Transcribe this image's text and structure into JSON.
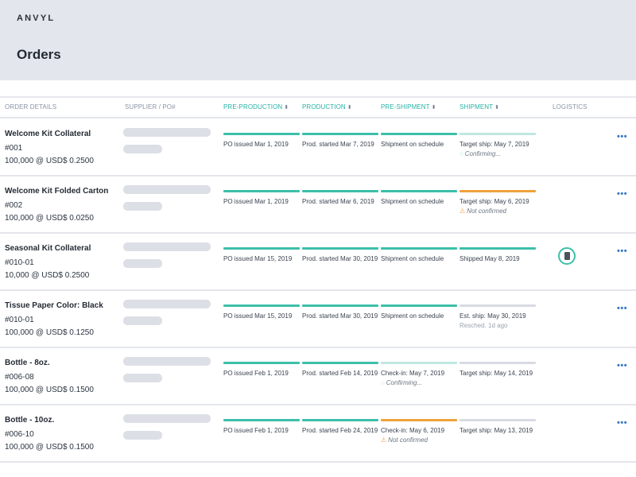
{
  "app": {
    "brand": "ANVYL",
    "page_title": "Orders"
  },
  "columns": [
    {
      "label": "ORDER DETAILS",
      "sortable": false
    },
    {
      "label": "SUPPLIER / PO#",
      "sortable": false
    },
    {
      "label": "PRE-PRODUCTION",
      "sortable": true
    },
    {
      "label": "PRODUCTION",
      "sortable": true
    },
    {
      "label": "PRE-SHIPMENT",
      "sortable": true
    },
    {
      "label": "SHIPMENT",
      "sortable": true
    },
    {
      "label": "LOGISTICS",
      "sortable": false
    }
  ],
  "orders": [
    {
      "title": "Welcome Kit Collateral",
      "number": "#001",
      "quantity": "100,000 @ USD$ 0.2500",
      "preproduction": {
        "text": "PO issued Mar 1, 2019",
        "status": "green"
      },
      "production": {
        "text": "Prod. started Mar 7, 2019",
        "status": "green"
      },
      "preshipment": {
        "text": "Shipment on schedule",
        "status": "green"
      },
      "shipment": {
        "text": "Target ship: May 7, 2019",
        "sub": "Confirming...",
        "status": "lightgreen",
        "sub_icon": "pending-icon"
      },
      "more": "•••"
    },
    {
      "title": "Welcome Kit Folded Carton",
      "number": "#002",
      "quantity": "100,000 @ USD$ 0.0250",
      "preproduction": {
        "text": "PO issued Mar 1, 2019",
        "status": "green"
      },
      "production": {
        "text": "Prod. started Mar 6, 2019",
        "status": "green"
      },
      "preshipment": {
        "text": "Shipment on schedule",
        "status": "green"
      },
      "shipment": {
        "text": "Target ship: May 6, 2019",
        "sub": "Not confirmed",
        "status": "orange",
        "sub_icon": "warning-icon"
      },
      "more": "•••"
    },
    {
      "title": "Seasonal Kit Collateral",
      "number": "#010-01",
      "quantity": "10,000 @ USD$ 0.2500",
      "preproduction": {
        "text": "PO issued Mar 15, 2019",
        "status": "green"
      },
      "production": {
        "text": "Prod. started Mar 30, 2019",
        "status": "green"
      },
      "preshipment": {
        "text": "Shipment on schedule",
        "status": "green"
      },
      "shipment": {
        "text": "Shipped May 8, 2019",
        "status": "green"
      },
      "logistics": {
        "icon": "document-icon"
      },
      "more": "•••"
    },
    {
      "title": "Tissue Paper Color: Black",
      "number": "#010-01",
      "quantity": "100,000 @ USD$ 0.1250",
      "preproduction": {
        "text": "PO issued Mar 15, 2019",
        "status": "green"
      },
      "production": {
        "text": "Prod. started Mar 30, 2019",
        "status": "green"
      },
      "preshipment": {
        "text": "Shipment on schedule",
        "status": "green"
      },
      "shipment": {
        "text": "Est. ship: May 30, 2019",
        "sub": "Resched. 1d ago",
        "status": "grey"
      },
      "more": "•••"
    },
    {
      "title": "Bottle - 8oz.",
      "number": "#006-08",
      "quantity": "100,000 @ USD$ 0.1500",
      "preproduction": {
        "text": "PO issued Feb 1, 2019",
        "status": "green"
      },
      "production": {
        "text": "Prod. started Feb 14, 2019",
        "status": "green"
      },
      "preshipment": {
        "text": "Check-in: May 7, 2019",
        "sub": "Confirming...",
        "status": "lightgreen",
        "sub_icon": "pending-icon"
      },
      "shipment": {
        "text": "Target ship: May 14, 2019",
        "status": "grey"
      },
      "more": "•••"
    },
    {
      "title": "Bottle - 10oz.",
      "number": "#006-10",
      "quantity": "100,000 @ USD$ 0.1500",
      "preproduction": {
        "text": "PO issued Feb 1, 2019",
        "status": "green"
      },
      "production": {
        "text": "Prod. started Feb 24, 2019",
        "status": "green"
      },
      "preshipment": {
        "text": "Check-in: May 6, 2019",
        "sub": "Not confirmed",
        "status": "orange",
        "sub_icon": "warning-icon"
      },
      "shipment": {
        "text": "Target ship: May 13, 2019",
        "status": "grey"
      },
      "more": "•••"
    }
  ]
}
